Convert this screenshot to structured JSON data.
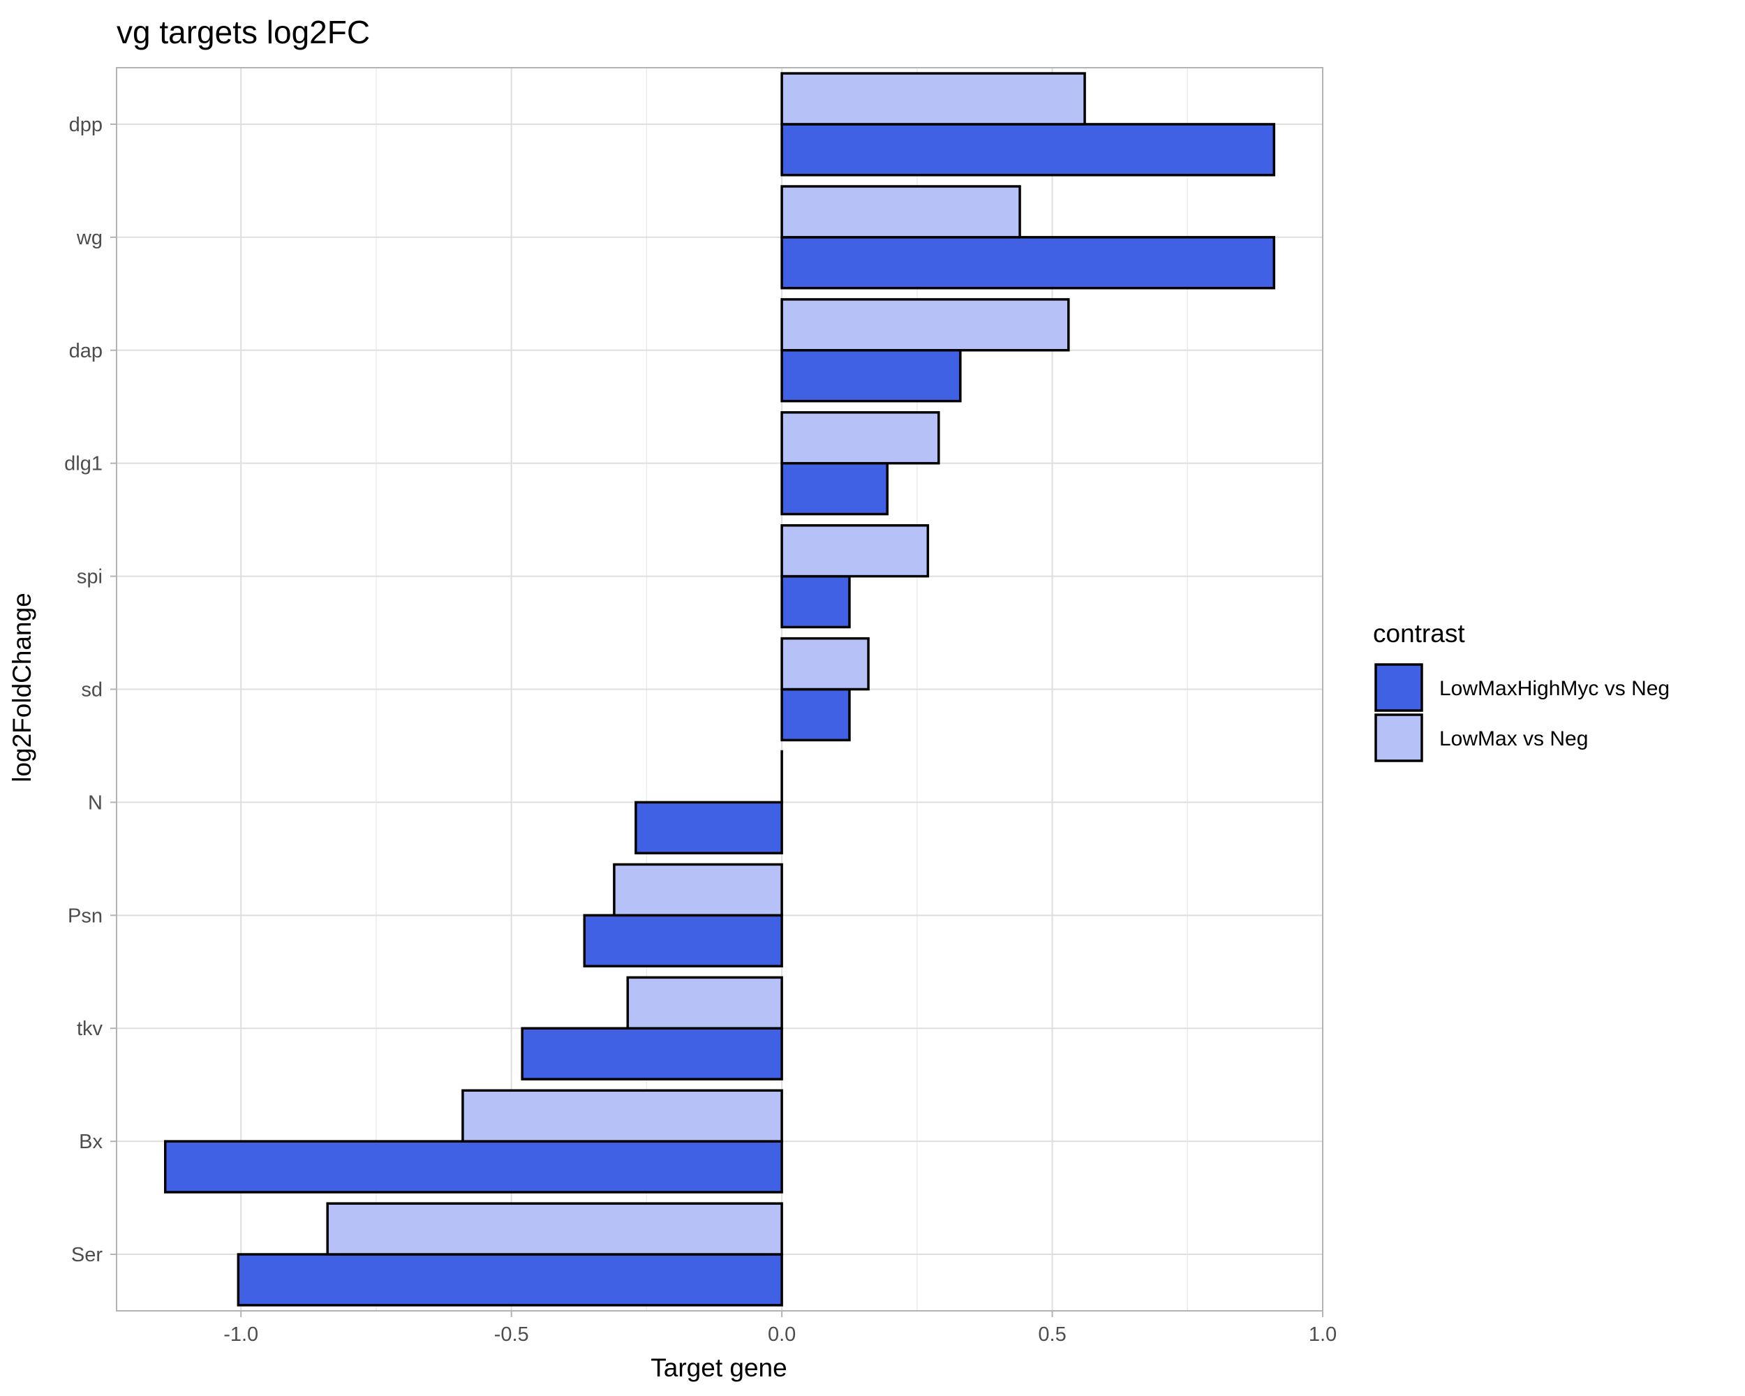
{
  "chart_data": {
    "type": "bar",
    "orientation": "horizontal",
    "title": "vg targets log2FC",
    "xlabel": "Target gene",
    "ylabel": "log2FoldChange",
    "categories": [
      "dpp",
      "wg",
      "dap",
      "dlg1",
      "spi",
      "sd",
      "N",
      "Psn",
      "tkv",
      "Bx",
      "Ser"
    ],
    "series": [
      {
        "name": "LowMaxHighMyc vs Neg",
        "color": "#4161e4",
        "values": [
          0.91,
          0.91,
          0.33,
          0.195,
          0.125,
          0.125,
          -0.27,
          -0.365,
          -0.48,
          -1.14,
          -1.005
        ]
      },
      {
        "name": "LowMax vs Neg",
        "color": "#b6c1f7",
        "values": [
          0.56,
          0.44,
          0.53,
          0.29,
          0.27,
          0.16,
          0.0,
          -0.31,
          -0.285,
          -0.59,
          -0.84
        ]
      }
    ],
    "xlim": [
      -1.23,
      1.0
    ],
    "xticks": [
      -1.0,
      -0.5,
      0.0,
      0.5,
      1.0
    ],
    "xtick_labels": [
      "-1.0",
      "-0.5",
      "0.0",
      "0.5",
      "1.0"
    ],
    "grid": true,
    "legend": {
      "title": "contrast",
      "position": "right"
    }
  }
}
